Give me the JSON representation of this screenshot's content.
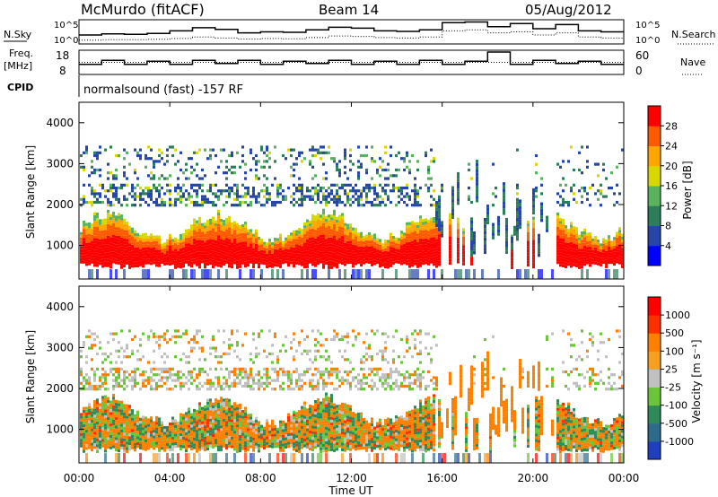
{
  "header": {
    "station": "McMurdo (fitACF)",
    "beam": "Beam 14",
    "date": "05/Aug/2012"
  },
  "chart_data": [
    {
      "type": "line",
      "name": "noise-panel",
      "left_label": "N.Sky",
      "right_label": "N.Search",
      "left_ticks": [
        "10^5",
        "10^0"
      ],
      "right_ticks": [
        "10^5",
        "10^0"
      ],
      "series": [
        {
          "style": "solid",
          "values": [
            0.35,
            0.4,
            0.38,
            0.42,
            0.55,
            0.7,
            0.62,
            0.45,
            0.5,
            0.48,
            0.6,
            0.72,
            0.68,
            0.55,
            0.52,
            0.6,
            0.95,
            0.98,
            0.75,
            0.9,
            0.65,
            0.85,
            0.55,
            0.5
          ]
        },
        {
          "style": "dotted",
          "values": [
            0.1,
            0.12,
            0.12,
            0.14,
            0.18,
            0.25,
            0.2,
            0.15,
            0.18,
            0.16,
            0.22,
            0.3,
            0.28,
            0.22,
            0.2,
            0.25,
            0.55,
            0.6,
            0.45,
            0.5,
            0.35,
            0.45,
            0.25,
            0.2
          ]
        }
      ]
    },
    {
      "type": "line",
      "name": "freq-panel",
      "left_label": "Freq.",
      "left_unit": "[MHz]",
      "left_ticks": [
        "18",
        "8"
      ],
      "right_label": "Nave",
      "right_ticks": [
        "60",
        "0"
      ],
      "series": [
        {
          "style": "solid",
          "values": [
            0.4,
            0.6,
            0.4,
            0.55,
            0.4,
            0.6,
            0.45,
            0.6,
            0.4,
            0.55,
            0.45,
            0.6,
            0.4,
            0.55,
            0.4,
            0.6,
            0.4,
            0.55,
            1.0,
            0.4,
            0.6,
            0.45,
            0.55,
            0.4
          ]
        },
        {
          "style": "dotted",
          "values": [
            0.5,
            0.5,
            0.5,
            0.5,
            0.5,
            0.5,
            0.5,
            0.5,
            0.5,
            0.5,
            0.5,
            0.5,
            0.5,
            0.5,
            0.5,
            0.5,
            0.5,
            0.5,
            0.5,
            0.5,
            0.5,
            0.5,
            0.5,
            0.5
          ]
        }
      ]
    },
    {
      "type": "heatmap",
      "name": "power",
      "ylabel": "Slant Range [km]",
      "yticks": [
        1000,
        2000,
        3000,
        4000
      ],
      "ylim": [
        180,
        4500
      ],
      "colorbar_label": "Power [dB]",
      "colorbar_ticks": [
        "4",
        "8",
        "12",
        "16",
        "20",
        "24",
        "28"
      ],
      "colors": [
        "#0000ff",
        "#2546a8",
        "#2e7d5a",
        "#58b25e",
        "#d8d800",
        "#ffa500",
        "#ff5a00",
        "#ff0000"
      ]
    },
    {
      "type": "heatmap",
      "name": "velocity",
      "ylabel": "Slant Range [km]",
      "yticks": [
        1000,
        2000,
        3000,
        4000
      ],
      "ylim": [
        180,
        4500
      ],
      "colorbar_label": "Velocity [m s⁻¹]",
      "colorbar_ticks": [
        "1000",
        "500",
        "100",
        "25",
        "-25",
        "-100",
        "-500",
        "-1000"
      ],
      "colors": [
        "#1f3fbf",
        "#2e6b8a",
        "#2e8b57",
        "#6ac53a",
        "#c0c0c0",
        "#f7a020",
        "#ff7f00",
        "#ff3000",
        "#ff0000"
      ]
    }
  ],
  "xaxis": {
    "label": "Time UT",
    "ticks": [
      "00:00",
      "04:00",
      "08:00",
      "12:00",
      "16:00",
      "20:00",
      "00:00"
    ]
  },
  "cpid": {
    "label": "CPID",
    "text": "normalsound (fast) -157 RF"
  }
}
